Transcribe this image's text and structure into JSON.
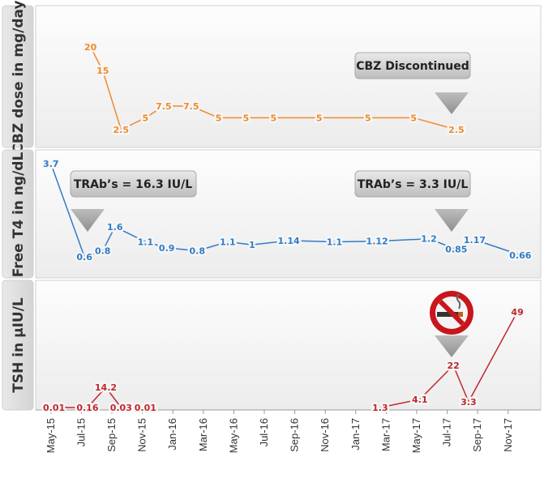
{
  "chart_data": {
    "type": "line",
    "x_ticks": [
      "May-15",
      "Jul-15",
      "Sep-15",
      "Nov-15",
      "Jan-16",
      "Mar-16",
      "May-16",
      "Jul-16",
      "Sep-16",
      "Nov-16",
      "Jan-17",
      "Mar-17",
      "May-17",
      "Jul-17",
      "Sep-17",
      "Nov-17"
    ],
    "panels": [
      {
        "ylabel": "CBZ dose in mg/day",
        "color": "#f08a2c",
        "x": [
          1.8,
          2.2,
          2.8,
          3.6,
          4.2,
          5.1,
          6.0,
          6.9,
          7.8,
          9.3,
          10.9,
          12.4,
          13.8
        ],
        "values": [
          20,
          15,
          2.5,
          5,
          7.5,
          7.5,
          5,
          5,
          5,
          5,
          5,
          5,
          2.5
        ],
        "labels": [
          "20",
          "15",
          "2.5",
          "5",
          "7.5",
          "7.5",
          "5",
          "5",
          "5",
          "5",
          "5",
          "5",
          "2.5"
        ],
        "annotations": [
          {
            "text": "CBZ Discontinued",
            "x": 13.5
          }
        ]
      },
      {
        "ylabel": "Free T4 in ng/dL",
        "color": "#2f7cc7",
        "x": [
          0.5,
          1.6,
          2.2,
          2.6,
          3.6,
          4.3,
          5.3,
          6.3,
          7.1,
          8.3,
          9.8,
          11.2,
          12.9,
          13.8,
          14.4,
          15.9
        ],
        "values": [
          3.7,
          0.6,
          0.8,
          1.6,
          1.1,
          0.9,
          0.8,
          1.1,
          1,
          1.14,
          1.1,
          1.12,
          1.2,
          0.85,
          1.17,
          0.66
        ],
        "labels": [
          "3.7",
          "0.6",
          "0.8",
          "1.6",
          "1.1",
          "0.9",
          "0.8",
          "1.1",
          "1",
          "1.14",
          "1.1",
          "1.12",
          "1.2",
          "0.85",
          "1.17",
          "0.66"
        ],
        "annotations": [
          {
            "text": "TRAb’s = 16.3 IU/L",
            "x": 2.2
          },
          {
            "text": "TRAb’s = 3.3 IU/L",
            "x": 13.5
          }
        ]
      },
      {
        "ylabel": "TSH in µIU/L",
        "color": "#c0272d",
        "segments": [
          {
            "x": [
              0.6,
              1.7,
              2.3,
              2.8,
              3.6
            ],
            "values": [
              0.01,
              0.16,
              14.2,
              0.03,
              0.01
            ]
          },
          {
            "x": [
              11.3,
              12.6,
              13.7,
              14.2,
              15.8
            ],
            "values": [
              1.3,
              4.1,
              22,
              3.3,
              49
            ]
          }
        ],
        "labels": [
          "0.01",
          "0.16",
          "14.2",
          "0.03",
          "0.01",
          "1.3",
          "4.1",
          "22",
          "3.3",
          "49"
        ],
        "annotations": [
          {
            "icon": "no-smoking-icon",
            "x": 13.5
          }
        ]
      }
    ]
  }
}
